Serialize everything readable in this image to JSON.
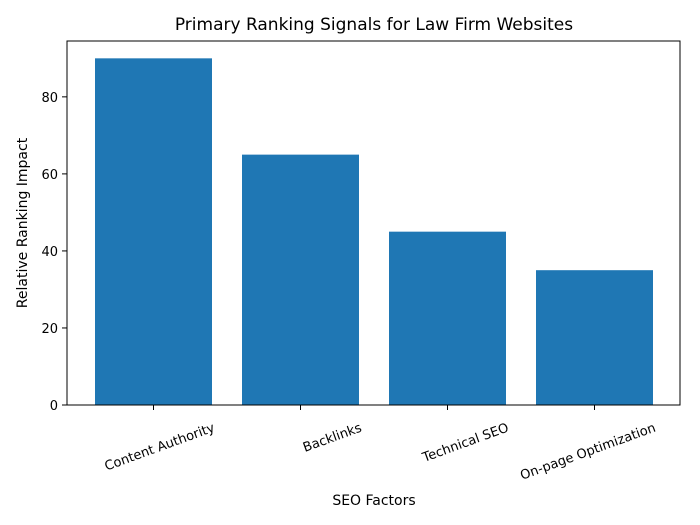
{
  "chart_data": {
    "type": "bar",
    "title": "Primary Ranking Signals for Law Firm Websites",
    "xlabel": "SEO Factors",
    "ylabel": "Relative Ranking Impact",
    "categories": [
      "Content Authority",
      "Backlinks",
      "Technical SEO",
      "On-page Optimization"
    ],
    "values": [
      90,
      65,
      45,
      35
    ],
    "ylim": [
      0,
      94.5
    ],
    "yticks": [
      0,
      20,
      40,
      60,
      80
    ],
    "bar_color": "#1f77b4",
    "grid": false,
    "legend": "none"
  }
}
